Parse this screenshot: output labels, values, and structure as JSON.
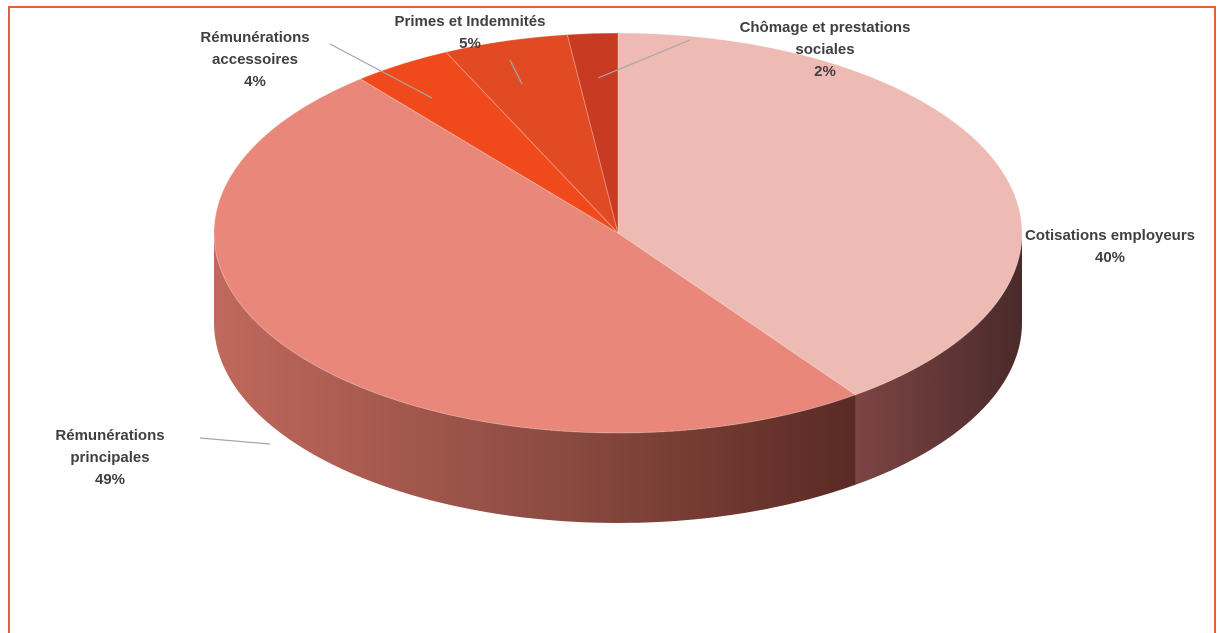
{
  "chart_data": {
    "type": "pie",
    "title": "",
    "three_d": true,
    "slices": [
      {
        "label_lines": [
          "Cotisations employeurs"
        ],
        "percent_label": "40%",
        "value": 40,
        "color": "#eebab4"
      },
      {
        "label_lines": [
          "Rémunérations",
          "principales"
        ],
        "percent_label": "49%",
        "value": 49,
        "color": "#e8877a"
      },
      {
        "label_lines": [
          "Rémunérations",
          "accessoires"
        ],
        "percent_label": "4%",
        "value": 4,
        "color": "#f04a1c"
      },
      {
        "label_lines": [
          "Primes et Indemnités"
        ],
        "percent_label": "5%",
        "value": 5,
        "color": "#e24a23"
      },
      {
        "label_lines": [
          "Chômage et prestations",
          "sociales"
        ],
        "percent_label": "2%",
        "value": 2,
        "color": "#c83a22"
      }
    ],
    "colors": {
      "frame_border": "#e0603a",
      "label_text": "#404040",
      "leader_line": "#a6a6a6"
    }
  }
}
